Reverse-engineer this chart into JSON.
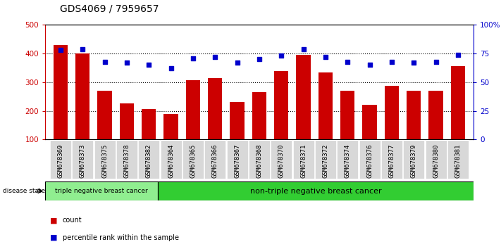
{
  "title": "GDS4069 / 7959657",
  "categories": [
    "GSM678369",
    "GSM678373",
    "GSM678375",
    "GSM678378",
    "GSM678382",
    "GSM678364",
    "GSM678365",
    "GSM678366",
    "GSM678367",
    "GSM678368",
    "GSM678370",
    "GSM678371",
    "GSM678372",
    "GSM678374",
    "GSM678376",
    "GSM678377",
    "GSM678379",
    "GSM678380",
    "GSM678381"
  ],
  "bar_values": [
    430,
    400,
    270,
    225,
    207,
    190,
    308,
    315,
    232,
    264,
    338,
    395,
    335,
    270,
    220,
    288,
    270,
    270,
    355
  ],
  "percentile_values": [
    78,
    79,
    68,
    67,
    65,
    62,
    71,
    72,
    67,
    70,
    73,
    79,
    72,
    68,
    65,
    68,
    67,
    68,
    74
  ],
  "bar_color": "#cc0000",
  "percentile_color": "#0000cc",
  "left_ylim": [
    100,
    500
  ],
  "right_ylim": [
    0,
    100
  ],
  "left_yticks": [
    100,
    200,
    300,
    400,
    500
  ],
  "right_yticks": [
    0,
    25,
    50,
    75,
    100
  ],
  "right_yticklabels": [
    "0",
    "25",
    "50",
    "75",
    "100%"
  ],
  "group1_label": "triple negative breast cancer",
  "group2_label": "non-triple negative breast cancer",
  "group1_count": 5,
  "group2_count": 14,
  "disease_state_label": "disease state",
  "legend_count": "count",
  "legend_percentile": "percentile rank within the sample",
  "group1_color": "#90ee90",
  "group2_color": "#32cd32",
  "title_fontsize": 10,
  "tick_label_fontsize": 6.5,
  "axis_label_color_left": "#cc0000",
  "axis_label_color_right": "#0000cc",
  "background_color": "#ffffff"
}
